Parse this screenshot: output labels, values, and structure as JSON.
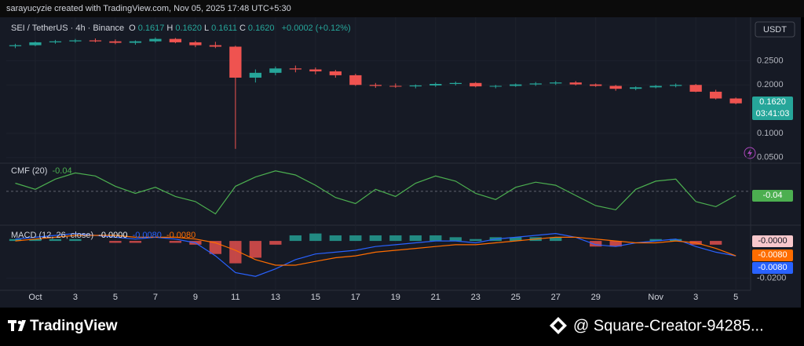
{
  "header": {
    "credit": "sarayucyzie created with TradingView.com, Nov 05, 2025 17:48 UTC+5:30",
    "currency_button": "USDT"
  },
  "footer": {
    "brand": "TradingView",
    "watermark": "@ Square-Creator-94285..."
  },
  "chart_data": [
    {
      "type": "candlestick",
      "title": "SEI / TetherUS · 4h · Binance",
      "ohlc": [
        {
          "key": "O",
          "text": "0.1617"
        },
        {
          "key": "H",
          "text": "0.1620"
        },
        {
          "key": "L",
          "text": "0.1611"
        },
        {
          "key": "C",
          "text": "0.1620"
        }
      ],
      "change": "+0.0002 (+0.12%)",
      "last_label": "0.1620",
      "countdown": "03:41:03",
      "up_color": "#26a69a",
      "down_color": "#ef5350",
      "grid": true,
      "xlim": [
        -1.45,
        35.7
      ],
      "xticks": [
        {
          "value": 0,
          "label": "Oct"
        },
        {
          "value": 2,
          "label": "3"
        },
        {
          "value": 4,
          "label": "5"
        },
        {
          "value": 6,
          "label": "7"
        },
        {
          "value": 8,
          "label": "9"
        },
        {
          "value": 10,
          "label": "11"
        },
        {
          "value": 12,
          "label": "13"
        },
        {
          "value": 14,
          "label": "15"
        },
        {
          "value": 16,
          "label": "17"
        },
        {
          "value": 18,
          "label": "19"
        },
        {
          "value": 20,
          "label": "21"
        },
        {
          "value": 22,
          "label": "23"
        },
        {
          "value": 24,
          "label": "25"
        },
        {
          "value": 26,
          "label": "27"
        },
        {
          "value": 28,
          "label": "29"
        },
        {
          "value": 31,
          "label": "Nov"
        },
        {
          "value": 33,
          "label": "3"
        },
        {
          "value": 35,
          "label": "5"
        }
      ],
      "ylim": [
        0.04,
        0.33
      ],
      "yticks": [
        {
          "value": 0.25,
          "label": "0.2500"
        },
        {
          "value": 0.2,
          "label": "0.2000"
        },
        {
          "value": 0.1,
          "label": "0.1000"
        },
        {
          "value": 0.05,
          "label": "0.0500"
        }
      ],
      "x": [
        -1,
        0,
        1,
        2,
        3,
        4,
        5,
        6,
        7,
        8,
        9,
        10,
        11,
        12,
        13,
        14,
        15,
        16,
        17,
        18,
        19,
        20,
        21,
        22,
        23,
        24,
        25,
        26,
        27,
        28,
        29,
        30,
        31,
        32,
        33,
        34,
        35
      ],
      "open": [
        0.28,
        0.282,
        0.288,
        0.29,
        0.292,
        0.29,
        0.287,
        0.29,
        0.295,
        0.288,
        0.282,
        0.279,
        0.215,
        0.225,
        0.234,
        0.232,
        0.228,
        0.22,
        0.2,
        0.198,
        0.197,
        0.199,
        0.202,
        0.204,
        0.197,
        0.198,
        0.201,
        0.203,
        0.205,
        0.201,
        0.198,
        0.192,
        0.195,
        0.198,
        0.2,
        0.186,
        0.172
      ],
      "high": [
        0.285,
        0.29,
        0.293,
        0.295,
        0.296,
        0.294,
        0.292,
        0.298,
        0.297,
        0.291,
        0.289,
        0.281,
        0.232,
        0.238,
        0.24,
        0.236,
        0.231,
        0.223,
        0.204,
        0.203,
        0.201,
        0.205,
        0.207,
        0.206,
        0.2,
        0.203,
        0.206,
        0.208,
        0.208,
        0.203,
        0.2,
        0.197,
        0.2,
        0.203,
        0.202,
        0.19,
        0.174
      ],
      "low": [
        0.276,
        0.28,
        0.285,
        0.287,
        0.288,
        0.284,
        0.283,
        0.287,
        0.286,
        0.278,
        0.276,
        0.068,
        0.205,
        0.22,
        0.226,
        0.222,
        0.215,
        0.198,
        0.194,
        0.194,
        0.193,
        0.196,
        0.199,
        0.195,
        0.193,
        0.196,
        0.198,
        0.2,
        0.199,
        0.196,
        0.188,
        0.189,
        0.193,
        0.195,
        0.185,
        0.17,
        0.16
      ],
      "close": [
        0.282,
        0.288,
        0.29,
        0.292,
        0.29,
        0.287,
        0.29,
        0.295,
        0.288,
        0.282,
        0.279,
        0.215,
        0.225,
        0.234,
        0.232,
        0.228,
        0.22,
        0.2,
        0.198,
        0.197,
        0.199,
        0.202,
        0.204,
        0.197,
        0.198,
        0.201,
        0.203,
        0.205,
        0.201,
        0.198,
        0.192,
        0.195,
        0.198,
        0.2,
        0.186,
        0.172,
        0.162
      ]
    },
    {
      "type": "line",
      "title": "CMF (20)",
      "color": "#4caf50",
      "ylim": [
        -0.3,
        0.26
      ],
      "values": [
        0.08,
        0.02,
        0.12,
        0.18,
        0.15,
        0.05,
        -0.02,
        0.04,
        -0.05,
        -0.1,
        -0.22,
        0.05,
        0.14,
        0.2,
        0.16,
        0.06,
        -0.06,
        -0.12,
        0.02,
        -0.05,
        0.08,
        0.15,
        0.1,
        -0.02,
        -0.08,
        0.04,
        0.09,
        0.06,
        -0.04,
        -0.14,
        -0.18,
        0.02,
        0.1,
        0.12,
        -0.1,
        -0.15,
        -0.04
      ]
    },
    {
      "type": "combo",
      "title": "MACD (12, 26, close)",
      "ylim": [
        -0.0328,
        0.0072
      ],
      "yticks": [
        {
          "value": -0.02,
          "label": "-0.0200"
        }
      ],
      "series": [
        {
          "style": "bar",
          "color": "#26a69a",
          "neg_color": "#ef5350",
          "last_label": "-0.0000",
          "values": [
            0.001,
            0.001,
            0.001,
            0.001,
            0.0,
            -0.001,
            -0.001,
            0.0,
            -0.001,
            -0.002,
            -0.007,
            -0.012,
            -0.009,
            -0.002,
            0.003,
            0.004,
            0.003,
            0.003,
            0.003,
            0.003,
            0.003,
            0.003,
            0.002,
            0.001,
            0.002,
            0.002,
            0.002,
            0.002,
            0.0,
            -0.003,
            -0.003,
            0.0,
            0.001,
            0.001,
            -0.002,
            -0.002,
            0.0
          ]
        },
        {
          "style": "line",
          "color": "#2962ff",
          "last_label": "-0.0080",
          "values": [
            0.001,
            0.002,
            0.003,
            0.004,
            0.003,
            0.002,
            0.001,
            0.002,
            0.001,
            -0.001,
            -0.008,
            -0.017,
            -0.019,
            -0.015,
            -0.01,
            -0.007,
            -0.006,
            -0.005,
            -0.003,
            -0.002,
            -0.001,
            0.0,
            0.0,
            -0.001,
            0.001,
            0.002,
            0.003,
            0.004,
            0.002,
            -0.002,
            -0.003,
            -0.001,
            0.0,
            0.001,
            -0.003,
            -0.006,
            -0.008
          ]
        },
        {
          "style": "line",
          "color": "#ff6d00",
          "last_label": "-0.0080",
          "values": [
            0.0,
            0.001,
            0.002,
            0.003,
            0.003,
            0.003,
            0.002,
            0.002,
            0.002,
            0.001,
            -0.001,
            -0.005,
            -0.01,
            -0.013,
            -0.013,
            -0.011,
            -0.009,
            -0.008,
            -0.006,
            -0.005,
            -0.004,
            -0.003,
            -0.002,
            -0.002,
            -0.001,
            0.0,
            0.001,
            0.002,
            0.002,
            0.001,
            0.0,
            -0.001,
            -0.001,
            0.0,
            -0.001,
            -0.004,
            -0.008
          ]
        }
      ]
    }
  ]
}
